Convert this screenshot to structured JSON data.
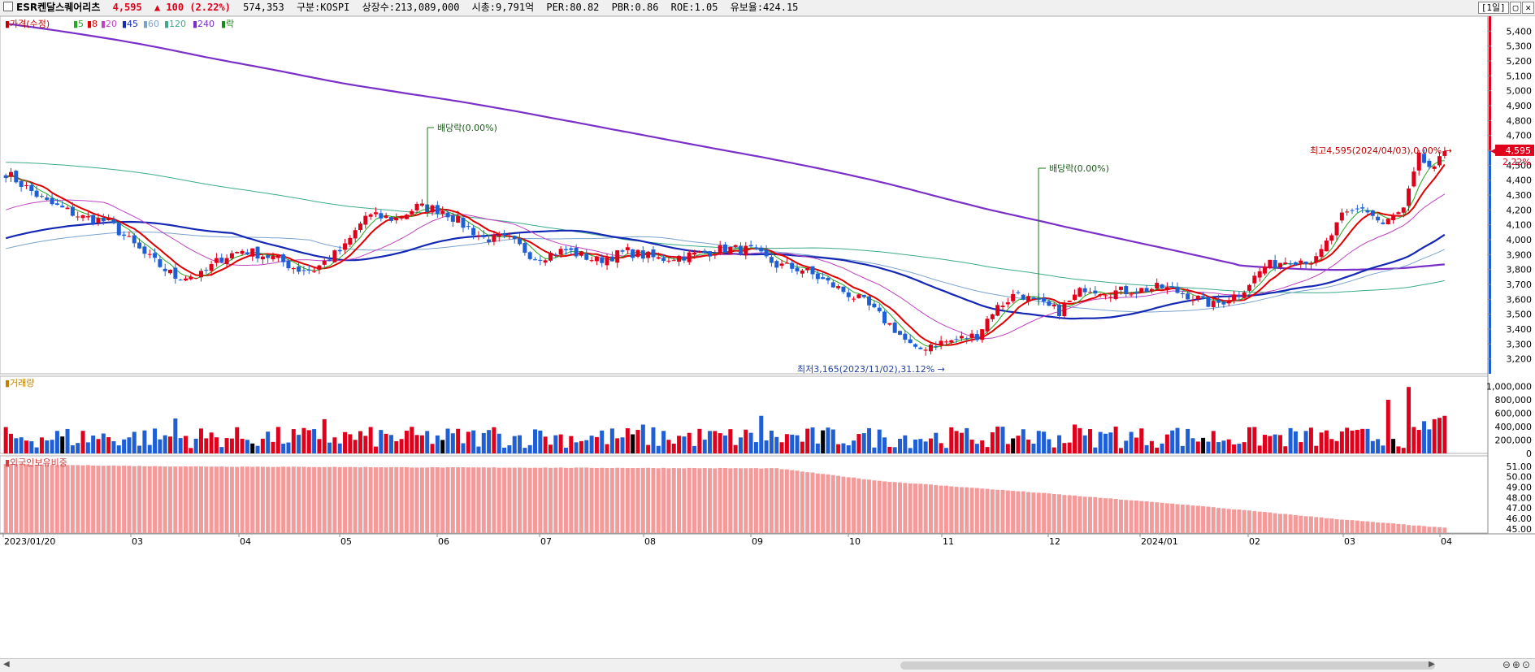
{
  "header": {
    "name": "ESR켄달스퀘어리츠",
    "price": "4,595",
    "change": "▲ 100 (2.22%)",
    "volume": "574,353",
    "market": "구분:KOSPI",
    "listed": "상장수:213,089,000",
    "mcap": "시총:9,791억",
    "per": "PER:80.82",
    "pbr": "PBR:0.86",
    "roe": "ROE:1.05",
    "reserve": "유보율:424.15",
    "period": "[1일]",
    "btns": [
      "▢",
      "✕"
    ]
  },
  "panels": {
    "price_title": "가격(수정)",
    "volume_title": "거래량",
    "foreign_title": "외국인보유비중"
  },
  "annotations": {
    "div1": "배당락(0.00%)",
    "div2": "배당락(0.00%)",
    "high": "최고4,595(2024/04/03),0.00%",
    "low": "최저3,165(2023/11/02),31.12%",
    "last_price": "4,595",
    "last_pct": "2.22%"
  },
  "colors": {
    "up": "#e0001b",
    "down": "#1f5fd6",
    "ma5": "#22aa22",
    "ma8": "#e00000",
    "ma20": "#c040c0",
    "ma45": "#1428b4",
    "ma60": "#7aa3cc",
    "ma120": "#3cab8a",
    "ma240": "#7a30c8",
    "foreign": "#f39a9a"
  },
  "chart_data": [
    {
      "type": "candlestick",
      "title": "가격(수정)",
      "legend": [
        {
          "name": "5",
          "color": "#22aa22"
        },
        {
          "name": "8",
          "color": "#e00000"
        },
        {
          "name": "20",
          "color": "#c040c0"
        },
        {
          "name": "45",
          "color": "#1428b4"
        },
        {
          "name": "60",
          "color": "#7aa3cc"
        },
        {
          "name": "120",
          "color": "#3cab8a"
        },
        {
          "name": "240",
          "color": "#7a30c8"
        },
        {
          "name": "락",
          "color": "#1a8a1a"
        }
      ],
      "x_ticks": [
        "2023/01/20",
        "03",
        "04",
        "05",
        "06",
        "07",
        "08",
        "09",
        "10",
        "11",
        "12",
        "2024/01",
        "02",
        "03",
        "04"
      ],
      "y_ticks": [
        "3,200",
        "3,300",
        "3,400",
        "3,500",
        "3,600",
        "3,700",
        "3,800",
        "3,900",
        "4,000",
        "4,100",
        "4,200",
        "4,300",
        "4,400",
        "4,500",
        "4,600",
        "4,700",
        "4,800",
        "4,900",
        "5,000",
        "5,100",
        "5,200",
        "5,300",
        "5,400"
      ],
      "ylim": [
        3100,
        5500
      ],
      "close_anchors": [
        [
          0,
          4450
        ],
        [
          8,
          4250
        ],
        [
          15,
          4150
        ],
        [
          20,
          4120
        ],
        [
          27,
          3900
        ],
        [
          33,
          3750
        ],
        [
          38,
          3760
        ],
        [
          42,
          3880
        ],
        [
          46,
          3930
        ],
        [
          52,
          3880
        ],
        [
          57,
          3800
        ],
        [
          60,
          3800
        ],
        [
          66,
          3950
        ],
        [
          70,
          4160
        ],
        [
          76,
          4140
        ],
        [
          80,
          4220
        ],
        [
          85,
          4200
        ],
        [
          89,
          4100
        ],
        [
          93,
          4010
        ],
        [
          98,
          4000
        ],
        [
          103,
          3880
        ],
        [
          109,
          3930
        ],
        [
          115,
          3860
        ],
        [
          121,
          3920
        ],
        [
          127,
          3870
        ],
        [
          134,
          3900
        ],
        [
          140,
          3940
        ],
        [
          145,
          3930
        ],
        [
          150,
          3830
        ],
        [
          155,
          3800
        ],
        [
          160,
          3710
        ],
        [
          167,
          3580
        ],
        [
          173,
          3400
        ],
        [
          177,
          3250
        ],
        [
          180,
          3300
        ],
        [
          184,
          3320
        ],
        [
          189,
          3360
        ],
        [
          192,
          3520
        ],
        [
          197,
          3650
        ],
        [
          200,
          3580
        ],
        [
          205,
          3520
        ],
        [
          210,
          3680
        ],
        [
          215,
          3650
        ],
        [
          220,
          3660
        ],
        [
          225,
          3680
        ],
        [
          230,
          3630
        ],
        [
          235,
          3560
        ],
        [
          240,
          3640
        ],
        [
          245,
          3820
        ],
        [
          250,
          3870
        ],
        [
          255,
          3860
        ],
        [
          260,
          4150
        ],
        [
          264,
          4220
        ],
        [
          268,
          4100
        ],
        [
          272,
          4200
        ],
        [
          275,
          4550
        ],
        [
          278,
          4460
        ],
        [
          280,
          4595
        ]
      ],
      "candle_count": 281,
      "ma_start": {
        "ma240": 5450,
        "ma120": 4520,
        "ma60": 3940,
        "ma45": 4010,
        "ma20": 4200
      },
      "last_close": 4595,
      "high": {
        "value": 4595,
        "date": "2024/04/03"
      },
      "low": {
        "value": 3165,
        "date": "2023/11/02"
      }
    },
    {
      "type": "bar",
      "title": "거래량",
      "y_ticks": [
        "0",
        "200,000",
        "400,000",
        "600,000",
        "800,000",
        "1,000,000"
      ],
      "ylim": [
        0,
        1150000
      ],
      "typical_range": [
        80000,
        400000
      ],
      "spikes": [
        [
          33,
          520000
        ],
        [
          62,
          510000
        ],
        [
          95,
          390000
        ],
        [
          104,
          340000
        ],
        [
          124,
          430000
        ],
        [
          147,
          560000
        ],
        [
          166,
          290000
        ],
        [
          198,
          360000
        ],
        [
          208,
          430000
        ],
        [
          216,
          400000
        ],
        [
          228,
          380000
        ],
        [
          262,
          340000
        ],
        [
          269,
          800000
        ],
        [
          273,
          990000
        ],
        [
          276,
          480000
        ],
        [
          278,
          510000
        ],
        [
          279,
          530000
        ],
        [
          280,
          560000
        ]
      ]
    },
    {
      "type": "bar",
      "title": "외국인보유비중",
      "y_ticks": [
        "45.00",
        "46.00",
        "47.00",
        "48.00",
        "49.00",
        "50.00",
        "51.00"
      ],
      "ylim": [
        44.6,
        52.0
      ],
      "anchors": [
        [
          0,
          51.2
        ],
        [
          30,
          51.0
        ],
        [
          80,
          50.9
        ],
        [
          150,
          50.8
        ],
        [
          170,
          49.6
        ],
        [
          200,
          48.5
        ],
        [
          230,
          47.3
        ],
        [
          260,
          45.9
        ],
        [
          280,
          45.1
        ]
      ]
    }
  ]
}
